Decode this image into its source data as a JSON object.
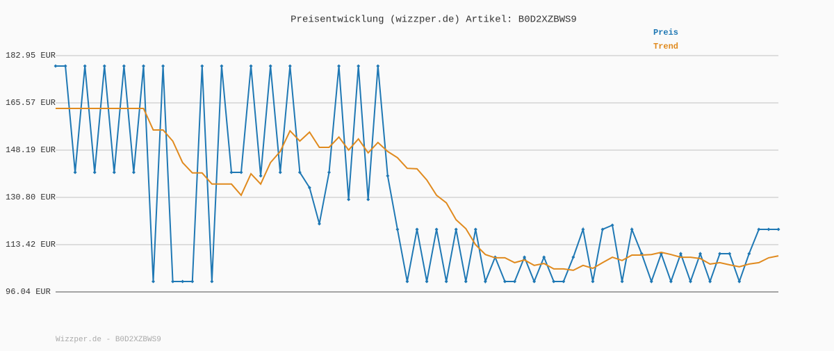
{
  "chart_data": {
    "type": "line",
    "title": "Preisentwicklung (wizzper.de) Artikel: B0D2XZBWS9",
    "footer": "Wizzper.de - B0D2XZBWS9",
    "categories": [
      null,
      null,
      null,
      null,
      null,
      null,
      null,
      null,
      null,
      null,
      null,
      null,
      null,
      null,
      null,
      null,
      null,
      null,
      null,
      null,
      null,
      null,
      null,
      null,
      null,
      null,
      null,
      null,
      null,
      null,
      null,
      null,
      null,
      null,
      null,
      null,
      null,
      null,
      null,
      null,
      null,
      null,
      null,
      null,
      null,
      null,
      null,
      null,
      null,
      null,
      null,
      null,
      null,
      null,
      null,
      null,
      null,
      null,
      null,
      null,
      null,
      null,
      null,
      null,
      null,
      null,
      null,
      null,
      null,
      null,
      null,
      null,
      null,
      null,
      null
    ],
    "ylim": [
      96.04,
      182.95
    ],
    "yticks": [
      {
        "value": 96.04,
        "label": "96.04 EUR"
      },
      {
        "value": 113.42,
        "label": "113.42 EUR"
      },
      {
        "value": 130.8,
        "label": "130.80 EUR"
      },
      {
        "value": 148.19,
        "label": "148.19 EUR"
      },
      {
        "value": 165.57,
        "label": "165.57 EUR"
      },
      {
        "value": 182.95,
        "label": "182.95 EUR"
      }
    ],
    "grid": true,
    "legend": "top-right",
    "series": [
      {
        "name": "Preis",
        "color": "#1f78b4",
        "markers": true,
        "values": [
          179.12,
          179.12,
          140.01,
          179.12,
          140.01,
          179.12,
          140.01,
          179.12,
          140.01,
          179.12,
          99.87,
          179.12,
          99.87,
          99.87,
          99.87,
          179.12,
          99.87,
          179.12,
          140.01,
          140.01,
          179.12,
          138.73,
          179.12,
          140.01,
          179.12,
          140.01,
          134.38,
          121.09,
          140.01,
          179.12,
          130.04,
          179.12,
          130.04,
          179.12,
          138.73,
          119.05,
          99.87,
          119.05,
          99.87,
          119.05,
          99.87,
          119.05,
          99.87,
          119.05,
          99.87,
          108.82,
          99.87,
          99.87,
          108.82,
          99.87,
          108.82,
          99.87,
          99.87,
          108.82,
          119.05,
          99.87,
          119.05,
          120.58,
          99.87,
          119.05,
          110.1,
          99.87,
          110.1,
          99.87,
          110.1,
          99.87,
          110.1,
          99.87,
          110.1,
          110.1,
          99.87,
          110.1,
          119.05,
          119.05,
          119.05
        ]
      },
      {
        "name": "Trend",
        "color": "#e08a1e",
        "markers": false,
        "values": [
          163.52,
          163.52,
          163.52,
          163.52,
          163.52,
          163.52,
          163.52,
          163.52,
          163.52,
          163.52,
          155.6,
          155.6,
          151.5,
          143.6,
          139.8,
          139.8,
          135.7,
          135.7,
          135.7,
          131.6,
          139.5,
          135.7,
          143.6,
          147.7,
          155.3,
          151.5,
          154.8,
          149.2,
          149.2,
          153.0,
          148.2,
          152.3,
          147.2,
          151.0,
          147.7,
          145.4,
          141.5,
          141.3,
          137.2,
          131.6,
          128.8,
          122.6,
          119.3,
          113.4,
          109.8,
          108.6,
          108.6,
          106.8,
          107.8,
          105.8,
          106.5,
          104.5,
          104.5,
          104.0,
          105.8,
          104.7,
          106.8,
          108.8,
          107.6,
          109.6,
          109.6,
          109.8,
          110.6,
          109.8,
          108.8,
          108.8,
          108.3,
          106.3,
          106.8,
          106.0,
          105.3,
          106.3,
          106.8,
          108.6,
          109.3
        ]
      }
    ]
  }
}
